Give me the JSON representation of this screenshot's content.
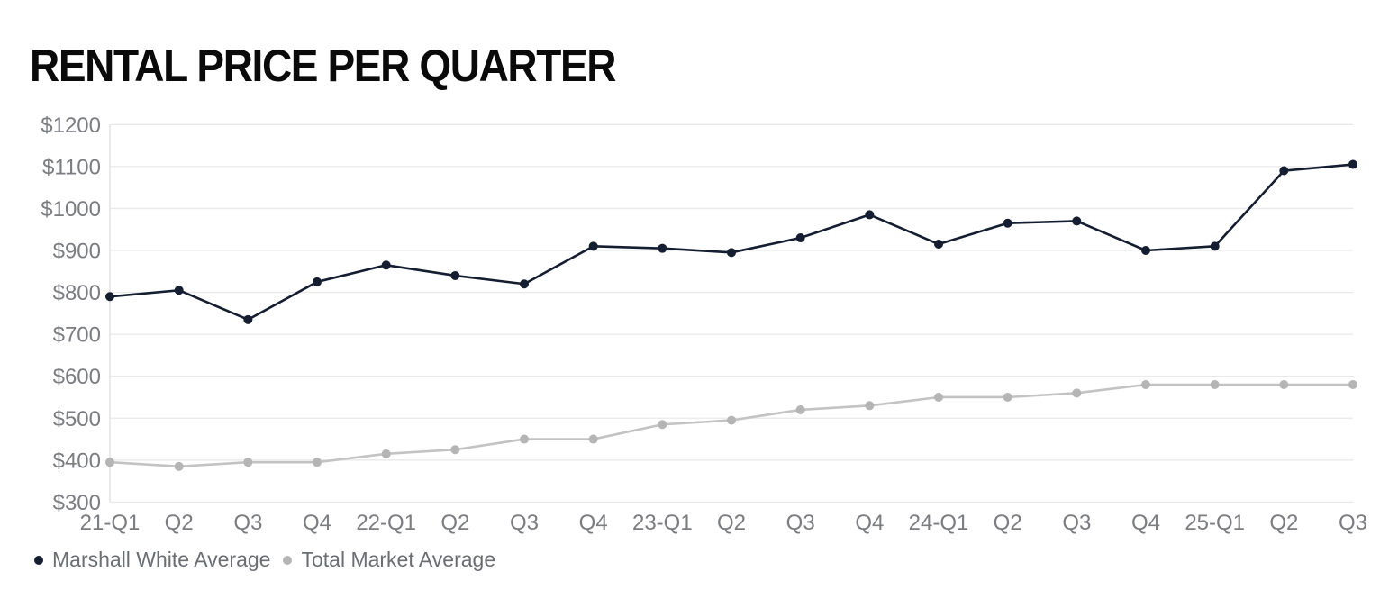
{
  "chart": {
    "title": "RENTAL PRICE PER QUARTER"
  },
  "chart_data": {
    "type": "line",
    "title": "RENTAL PRICE PER QUARTER",
    "xlabel": "",
    "ylabel": "",
    "categories": [
      "21-Q1",
      "Q2",
      "Q3",
      "Q4",
      "22-Q1",
      "Q2",
      "Q3",
      "Q4",
      "23-Q1",
      "Q2",
      "Q3",
      "Q4",
      "24-Q1",
      "Q2",
      "Q3",
      "Q4",
      "25-Q1",
      "Q2",
      "Q3"
    ],
    "series": [
      {
        "name": "Marshall White Average",
        "color": "#141e30",
        "marker_color": "#141e30",
        "values": [
          790,
          805,
          735,
          825,
          865,
          840,
          820,
          910,
          905,
          895,
          930,
          985,
          915,
          965,
          970,
          900,
          910,
          1090,
          1105
        ]
      },
      {
        "name": "Total Market Average",
        "color": "#c3c3c3",
        "marker_color": "#b5b5b5",
        "values": [
          395,
          385,
          395,
          395,
          415,
          425,
          450,
          450,
          485,
          495,
          520,
          530,
          550,
          550,
          560,
          580,
          580,
          580,
          580
        ]
      }
    ],
    "ylim": [
      300,
      1200
    ],
    "y_ticks": [
      300,
      400,
      500,
      600,
      700,
      800,
      900,
      1000,
      1100,
      1200
    ],
    "y_tick_labels": [
      "$300",
      "$400",
      "$500",
      "$600",
      "$700",
      "$800",
      "$900",
      "$1000",
      "$1100",
      "$1200"
    ],
    "grid": "horizontal",
    "legend_position": "bottom-left",
    "colors": {
      "title_text": "#0a0a0b",
      "axis_text": "#7b7d80",
      "legend_text": "#6b6e72",
      "gridline": "#e9e9e9",
      "axis_line": "#dfdfdf",
      "background": "#ffffff"
    }
  }
}
